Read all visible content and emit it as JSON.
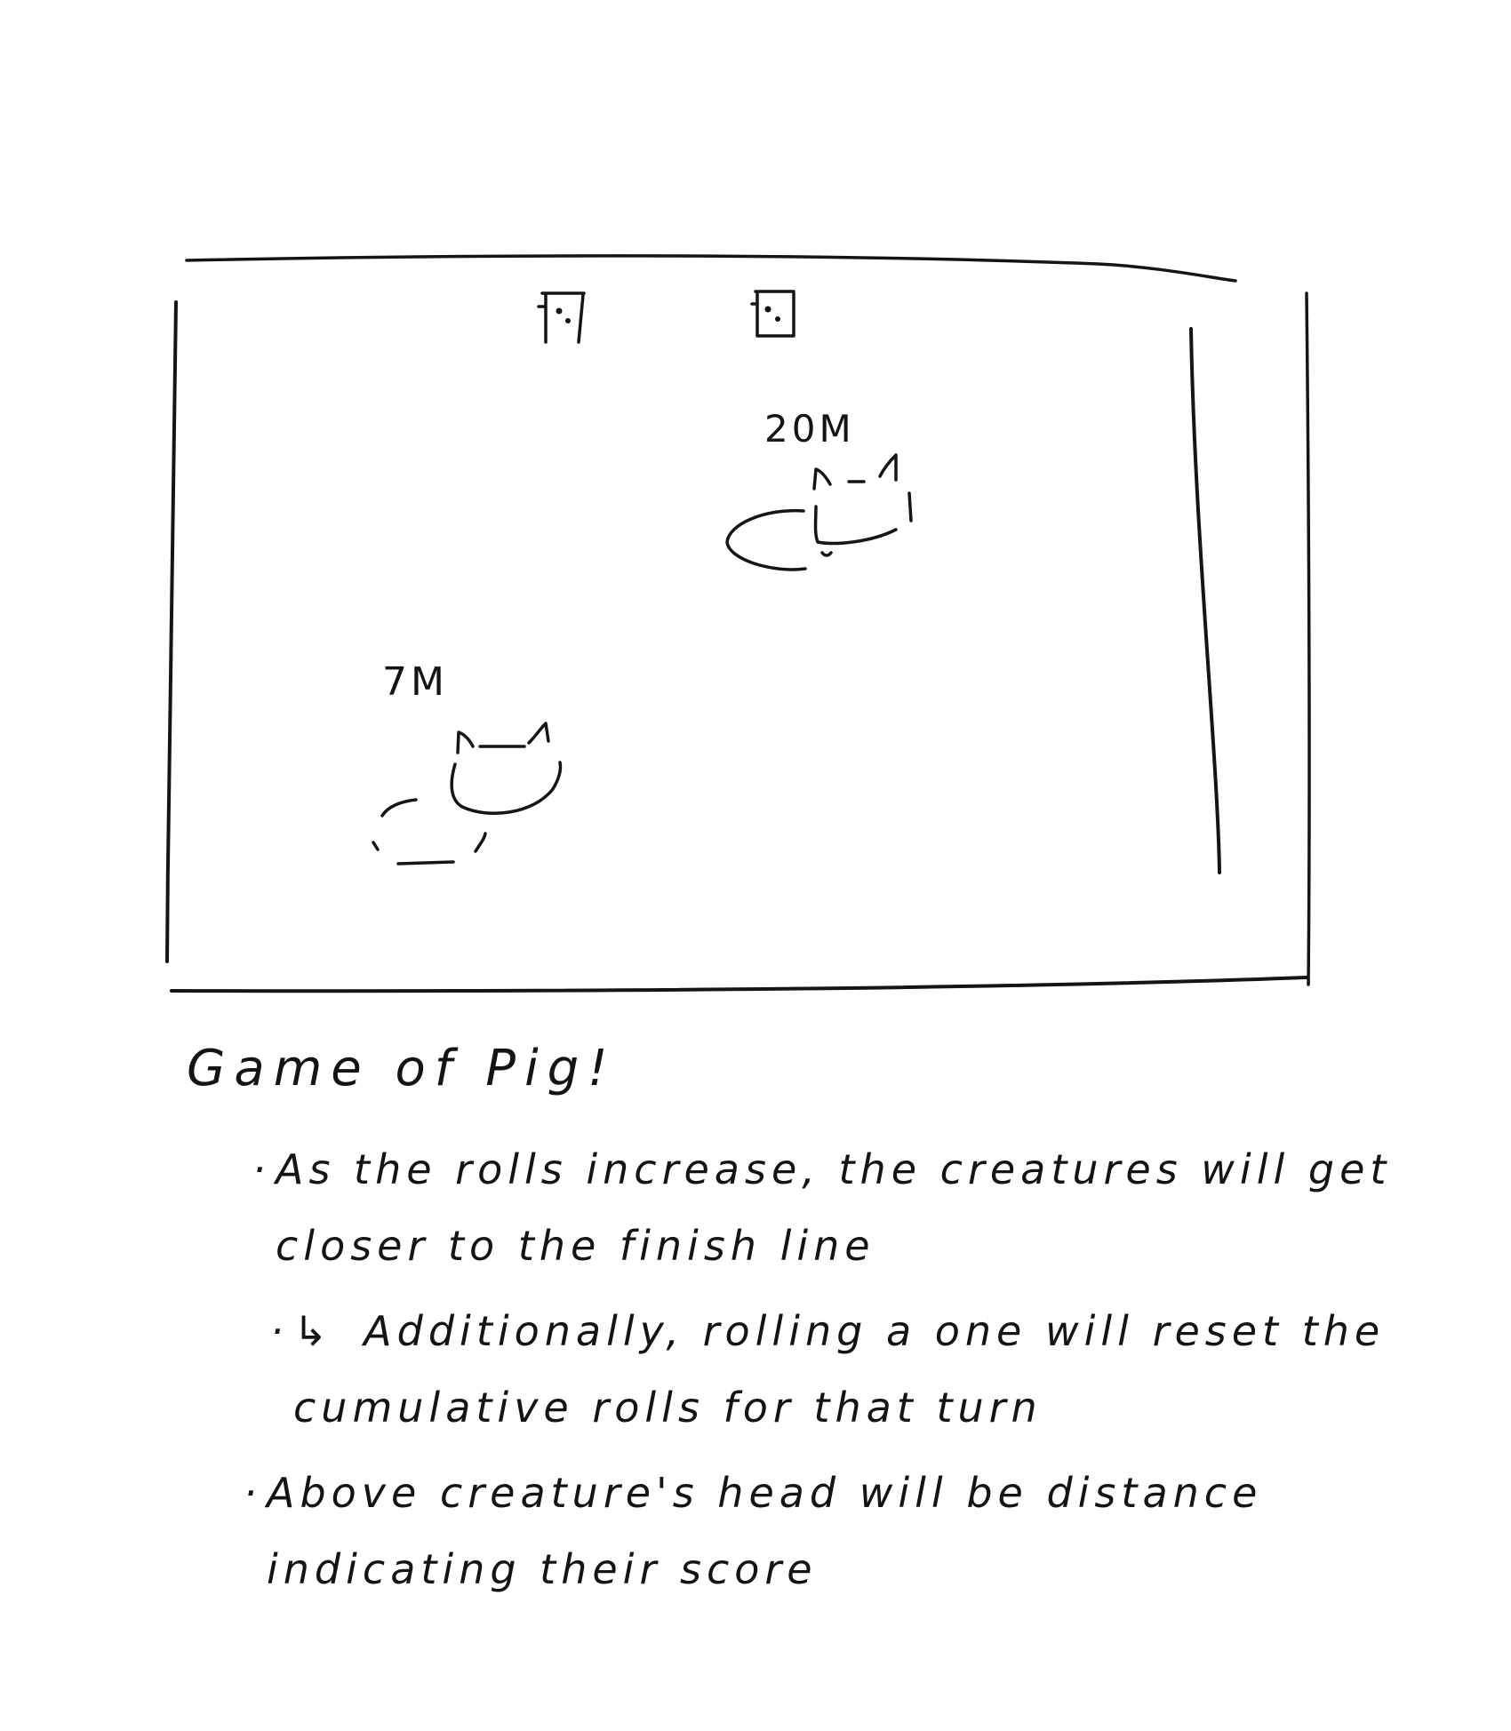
{
  "game_screen": {
    "dice": [
      {
        "label": "die-1",
        "face": "⚁"
      },
      {
        "label": "die-2",
        "face": "⚁"
      }
    ],
    "creatures": [
      {
        "name": "creature-1",
        "distance": "7M"
      },
      {
        "name": "creature-2",
        "distance": "20M"
      }
    ]
  },
  "notes": {
    "title": "Game of Pig!",
    "items": [
      "As the rolls increase, the creatures will get closer to the finish line",
      "Additionally, rolling a one will reset the cumulative rolls for that turn",
      "Above creature's head will be distance indicating their score"
    ],
    "arrow": "↳",
    "bullet": "·"
  }
}
